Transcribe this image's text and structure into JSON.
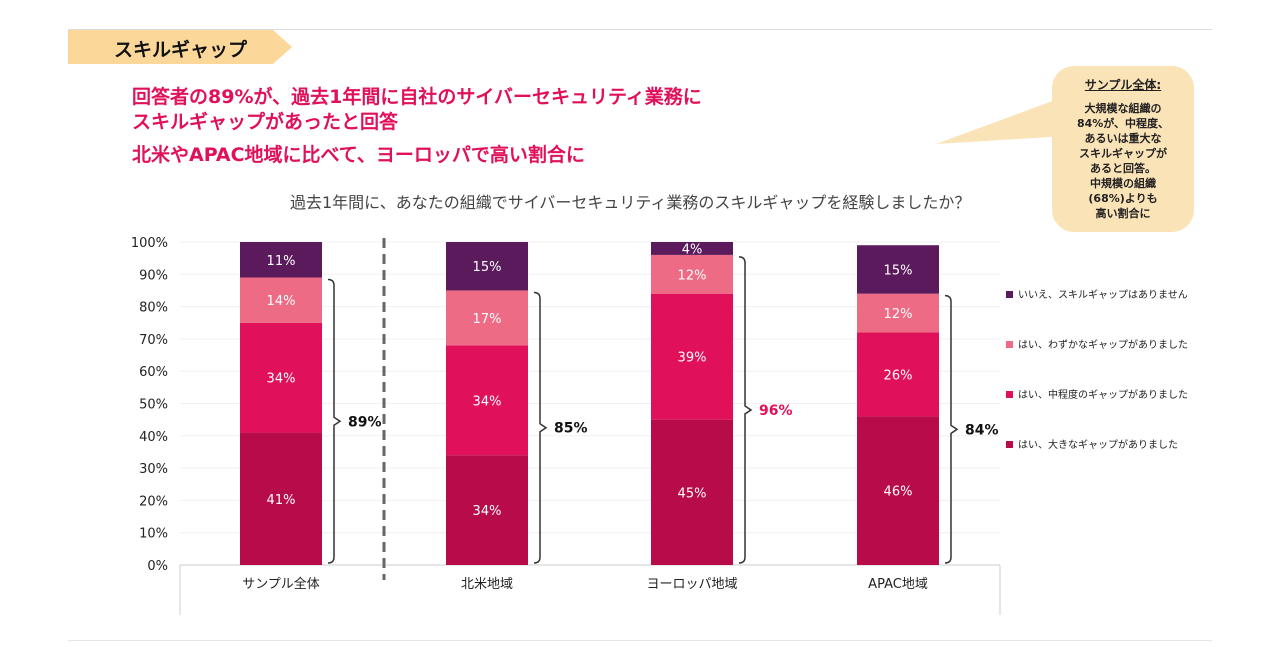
{
  "section_tag": "スキルギャップ",
  "headlines": [
    "回答者の89%が、過去1年間に自社のサイバーセキュリティ業務に",
    "スキルギャップがあったと回答",
    "北米やAPAC地域に比べて、ヨーロッパで高い割合に"
  ],
  "callout": {
    "title": "サンプル全体:",
    "lines": [
      "大規模な組織の",
      "84%が、中程度、",
      "あるいは重大な",
      "スキルギャップが",
      "あると回答。",
      "中規模の組織",
      "(68%)よりも",
      "高い割合に"
    ]
  },
  "chart_data": {
    "type": "stacked-bar",
    "title": "過去1年間に、あなたの組織でサイバーセキュリティ業務のスキルギャップを経験しましたか？",
    "categories": [
      "サンプル全体",
      "北米地域",
      "ヨーロッパ地域",
      "APAC地域"
    ],
    "ylim": [
      0,
      100
    ],
    "yticks": [
      "0%",
      "10%",
      "20%",
      "30%",
      "40%",
      "50%",
      "60%",
      "70%",
      "80%",
      "90%",
      "100%"
    ],
    "legend_position": "right",
    "series": [
      {
        "name": "はい、大きなギャップがありました",
        "color": "#b80c4a",
        "values": [
          41,
          34,
          45,
          46
        ]
      },
      {
        "name": "はい、中程度のギャップがありました",
        "color": "#e0105a",
        "values": [
          34,
          34,
          39,
          26
        ]
      },
      {
        "name": "はい、わずかなギャップがありました",
        "color": "#ee6b86",
        "values": [
          14,
          17,
          12,
          12
        ]
      },
      {
        "name": "いいえ、スキルギャップはありません",
        "color": "#5a1a5c",
        "values": [
          11,
          15,
          4,
          15
        ]
      }
    ],
    "totals": [
      {
        "label": "89%",
        "color": "#111"
      },
      {
        "label": "85%",
        "color": "#111"
      },
      {
        "label": "96%",
        "color": "#e0105a"
      },
      {
        "label": "84%",
        "color": "#111"
      }
    ]
  }
}
